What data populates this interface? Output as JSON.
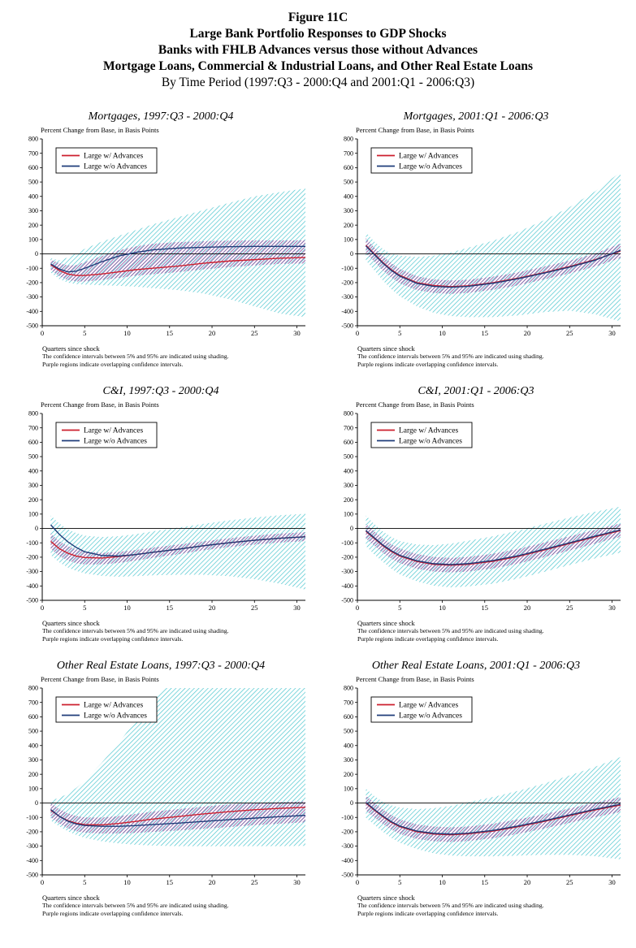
{
  "header": {
    "line1": "Figure 11C",
    "line2": "Large Bank Portfolio Responses to GDP Shocks",
    "line3": "Banks with FHLB Advances versus those without Advances",
    "line4": "Mortgage Loans, Commercial & Industrial Loans, and Other Real Estate Loans",
    "line5": "By Time Period (1997:Q3 - 2000:Q4 and 2001:Q1 - 2006:Q3)"
  },
  "labels": {
    "subtitle": "Percent Change from Base, in Basis Points",
    "xlabel": "Quarters since shock",
    "note1": "The confidence intervals between 5% and 95% are indicated using shading.",
    "note2": "Purple regions indicate overlapping confidence intervals."
  },
  "legend": {
    "with_advances": "Large w/ Advances",
    "without_advances": "Large w/o Advances"
  },
  "colors": {
    "with_advances": "#cc1f2e",
    "without_advances": "#1f3d7a",
    "band": "#4cc6ce",
    "overlap": "#8f4fa0",
    "axis": "#000000"
  },
  "axis": {
    "xlim": [
      0,
      31
    ],
    "ylim": [
      -500,
      800
    ],
    "x_ticks": [
      0,
      5,
      10,
      15,
      20,
      25,
      30
    ],
    "y_ticks": [
      800,
      700,
      600,
      500,
      400,
      300,
      200,
      100,
      0,
      -100,
      -200,
      -300,
      -400,
      -500
    ]
  },
  "chart_data": [
    {
      "type": "line",
      "title": "Mortgages, 1997:Q3 - 2000:Q4",
      "x": [
        1,
        2,
        3,
        4,
        5,
        7,
        9,
        11,
        13,
        16,
        19,
        22,
        25,
        28,
        31
      ],
      "series": [
        {
          "name": "Large w/ Advances",
          "values": [
            -75,
            -115,
            -140,
            -150,
            -150,
            -140,
            -125,
            -110,
            -100,
            -85,
            -65,
            -50,
            -40,
            -30,
            -25
          ]
        },
        {
          "name": "Large w/o Advances",
          "values": [
            -70,
            -105,
            -125,
            -120,
            -100,
            -55,
            -15,
            10,
            28,
            40,
            46,
            50,
            52,
            52,
            52
          ]
        }
      ],
      "band_outer": {
        "upper": [
          -30,
          -45,
          -25,
          5,
          35,
          85,
          125,
          165,
          205,
          255,
          305,
          355,
          400,
          430,
          455
        ],
        "lower": [
          -130,
          -175,
          -200,
          -210,
          -213,
          -218,
          -222,
          -228,
          -238,
          -252,
          -275,
          -315,
          -365,
          -415,
          -440
        ]
      },
      "band_inner": {
        "upper": [
          -40,
          -65,
          -80,
          -78,
          -58,
          -15,
          25,
          52,
          70,
          82,
          88,
          92,
          94,
          94,
          94
        ],
        "lower": [
          -110,
          -155,
          -182,
          -192,
          -192,
          -182,
          -167,
          -152,
          -142,
          -127,
          -108,
          -92,
          -80,
          -70,
          -66
        ]
      }
    },
    {
      "type": "line",
      "title": "Mortgages, 2001:Q1 - 2006:Q3",
      "x": [
        1,
        2,
        3,
        4,
        5,
        7,
        9,
        11,
        13,
        16,
        19,
        22,
        25,
        28,
        31
      ],
      "series": [
        {
          "name": "Large w/ Advances",
          "values": [
            60,
            0,
            -60,
            -110,
            -150,
            -200,
            -220,
            -228,
            -222,
            -200,
            -168,
            -130,
            -88,
            -40,
            20
          ]
        },
        {
          "name": "Large w/o Advances",
          "values": [
            55,
            -5,
            -65,
            -115,
            -155,
            -205,
            -226,
            -232,
            -226,
            -204,
            -172,
            -134,
            -92,
            -44,
            25
          ]
        }
      ],
      "band_outer": {
        "upper": [
          150,
          85,
          35,
          0,
          -12,
          -22,
          -12,
          10,
          42,
          92,
          155,
          235,
          325,
          435,
          570
        ],
        "lower": [
          -45,
          -115,
          -185,
          -245,
          -295,
          -365,
          -410,
          -432,
          -440,
          -440,
          -428,
          -405,
          -395,
          -420,
          -470
        ]
      },
      "band_inner": {
        "upper": [
          110,
          45,
          -15,
          -65,
          -105,
          -155,
          -178,
          -185,
          -180,
          -158,
          -128,
          -88,
          -48,
          2,
          72
        ],
        "lower": [
          5,
          -55,
          -115,
          -165,
          -205,
          -252,
          -272,
          -278,
          -272,
          -250,
          -218,
          -178,
          -136,
          -88,
          -28
        ]
      }
    },
    {
      "type": "line",
      "title": "C&I, 1997:Q3 - 2000:Q4",
      "x": [
        1,
        2,
        3,
        4,
        5,
        7,
        9,
        11,
        13,
        16,
        19,
        22,
        25,
        28,
        31
      ],
      "series": [
        {
          "name": "Large w/ Advances",
          "values": [
            -90,
            -140,
            -172,
            -192,
            -202,
            -206,
            -196,
            -182,
            -166,
            -144,
            -120,
            -100,
            -82,
            -68,
            -58
          ]
        },
        {
          "name": "Large w/o Advances",
          "values": [
            25,
            -40,
            -92,
            -132,
            -162,
            -188,
            -192,
            -182,
            -166,
            -144,
            -120,
            -100,
            -82,
            -68,
            -58
          ]
        }
      ],
      "band_outer": {
        "upper": [
          90,
          35,
          -5,
          -32,
          -50,
          -60,
          -54,
          -40,
          -20,
          6,
          32,
          56,
          76,
          92,
          102
        ],
        "lower": [
          -185,
          -235,
          -272,
          -295,
          -312,
          -330,
          -336,
          -332,
          -326,
          -322,
          -322,
          -332,
          -352,
          -385,
          -425
        ]
      },
      "band_inner": {
        "upper": [
          -35,
          -88,
          -122,
          -145,
          -160,
          -170,
          -163,
          -150,
          -133,
          -112,
          -90,
          -68,
          -50,
          -36,
          -26
        ],
        "lower": [
          -142,
          -192,
          -222,
          -242,
          -250,
          -250,
          -240,
          -224,
          -205,
          -180,
          -152,
          -130,
          -112,
          -98,
          -88
        ]
      }
    },
    {
      "type": "line",
      "title": "C&I, 2001:Q1 - 2006:Q3",
      "x": [
        1,
        2,
        3,
        4,
        5,
        7,
        9,
        11,
        13,
        16,
        19,
        22,
        25,
        28,
        31
      ],
      "series": [
        {
          "name": "Large w/ Advances",
          "values": [
            -20,
            -70,
            -120,
            -160,
            -192,
            -230,
            -250,
            -256,
            -250,
            -228,
            -194,
            -150,
            -105,
            -58,
            -15
          ]
        },
        {
          "name": "Large w/o Advances",
          "values": [
            -15,
            -65,
            -115,
            -155,
            -187,
            -225,
            -245,
            -251,
            -245,
            -223,
            -189,
            -145,
            -100,
            -53,
            -10
          ]
        }
      ],
      "band_outer": {
        "upper": [
          90,
          30,
          -20,
          -60,
          -88,
          -112,
          -116,
          -106,
          -86,
          -54,
          -14,
          32,
          76,
          116,
          152
        ],
        "lower": [
          -122,
          -182,
          -232,
          -280,
          -320,
          -368,
          -398,
          -410,
          -404,
          -384,
          -348,
          -302,
          -254,
          -208,
          -168
        ]
      },
      "band_inner": {
        "upper": [
          32,
          -20,
          -70,
          -110,
          -140,
          -178,
          -198,
          -205,
          -198,
          -176,
          -142,
          -98,
          -55,
          -10,
          35
        ],
        "lower": [
          -70,
          -120,
          -170,
          -210,
          -242,
          -280,
          -300,
          -306,
          -300,
          -278,
          -244,
          -200,
          -153,
          -106,
          -58
        ]
      }
    },
    {
      "type": "line",
      "title": "Other Real Estate Loans, 1997:Q3 - 2000:Q4",
      "x": [
        1,
        2,
        3,
        4,
        5,
        7,
        9,
        11,
        13,
        16,
        19,
        22,
        25,
        28,
        31
      ],
      "series": [
        {
          "name": "Large w/ Advances",
          "values": [
            -50,
            -92,
            -122,
            -140,
            -150,
            -152,
            -142,
            -128,
            -112,
            -94,
            -76,
            -60,
            -47,
            -37,
            -30
          ]
        },
        {
          "name": "Large w/o Advances",
          "values": [
            -45,
            -92,
            -126,
            -146,
            -156,
            -162,
            -162,
            -157,
            -150,
            -140,
            -128,
            -116,
            -105,
            -95,
            -86
          ]
        }
      ],
      "band_outer": {
        "upper": [
          20,
          35,
          65,
          105,
          155,
          280,
          420,
          570,
          720,
          870,
          920,
          930,
          930,
          930,
          920
        ],
        "lower": [
          -122,
          -162,
          -196,
          -222,
          -242,
          -266,
          -281,
          -290,
          -296,
          -300,
          -301,
          -301,
          -300,
          -300,
          -298
        ]
      },
      "band_inner": {
        "upper": [
          0,
          -42,
          -72,
          -90,
          -100,
          -101,
          -91,
          -76,
          -60,
          -43,
          -25,
          -10,
          0,
          6,
          12
        ],
        "lower": [
          -100,
          -142,
          -176,
          -196,
          -206,
          -212,
          -212,
          -208,
          -201,
          -191,
          -179,
          -167,
          -154,
          -144,
          -134
        ]
      }
    },
    {
      "type": "line",
      "title": "Other Real Estate Loans, 2001:Q1 - 2006:Q3",
      "x": [
        1,
        2,
        3,
        4,
        5,
        7,
        9,
        11,
        13,
        16,
        19,
        22,
        25,
        28,
        31
      ],
      "series": [
        {
          "name": "Large w/ Advances",
          "values": [
            0,
            -50,
            -95,
            -135,
            -165,
            -200,
            -216,
            -221,
            -215,
            -195,
            -164,
            -128,
            -88,
            -48,
            -14
          ]
        },
        {
          "name": "Large w/o Advances",
          "values": [
            5,
            -45,
            -90,
            -130,
            -160,
            -195,
            -211,
            -216,
            -210,
            -190,
            -159,
            -123,
            -83,
            -43,
            -8
          ]
        }
      ],
      "band_outer": {
        "upper": [
          100,
          48,
          8,
          -16,
          -32,
          -42,
          -36,
          -20,
          6,
          42,
          86,
          136,
          192,
          252,
          320
        ],
        "lower": [
          -102,
          -152,
          -200,
          -242,
          -276,
          -320,
          -350,
          -365,
          -371,
          -371,
          -366,
          -360,
          -360,
          -370,
          -392
        ]
      },
      "band_inner": {
        "upper": [
          52,
          0,
          -44,
          -84,
          -114,
          -149,
          -164,
          -169,
          -164,
          -144,
          -113,
          -78,
          -38,
          2,
          42
        ],
        "lower": [
          -52,
          -100,
          -145,
          -185,
          -215,
          -250,
          -266,
          -271,
          -265,
          -245,
          -214,
          -178,
          -138,
          -98,
          -62
        ]
      }
    }
  ]
}
